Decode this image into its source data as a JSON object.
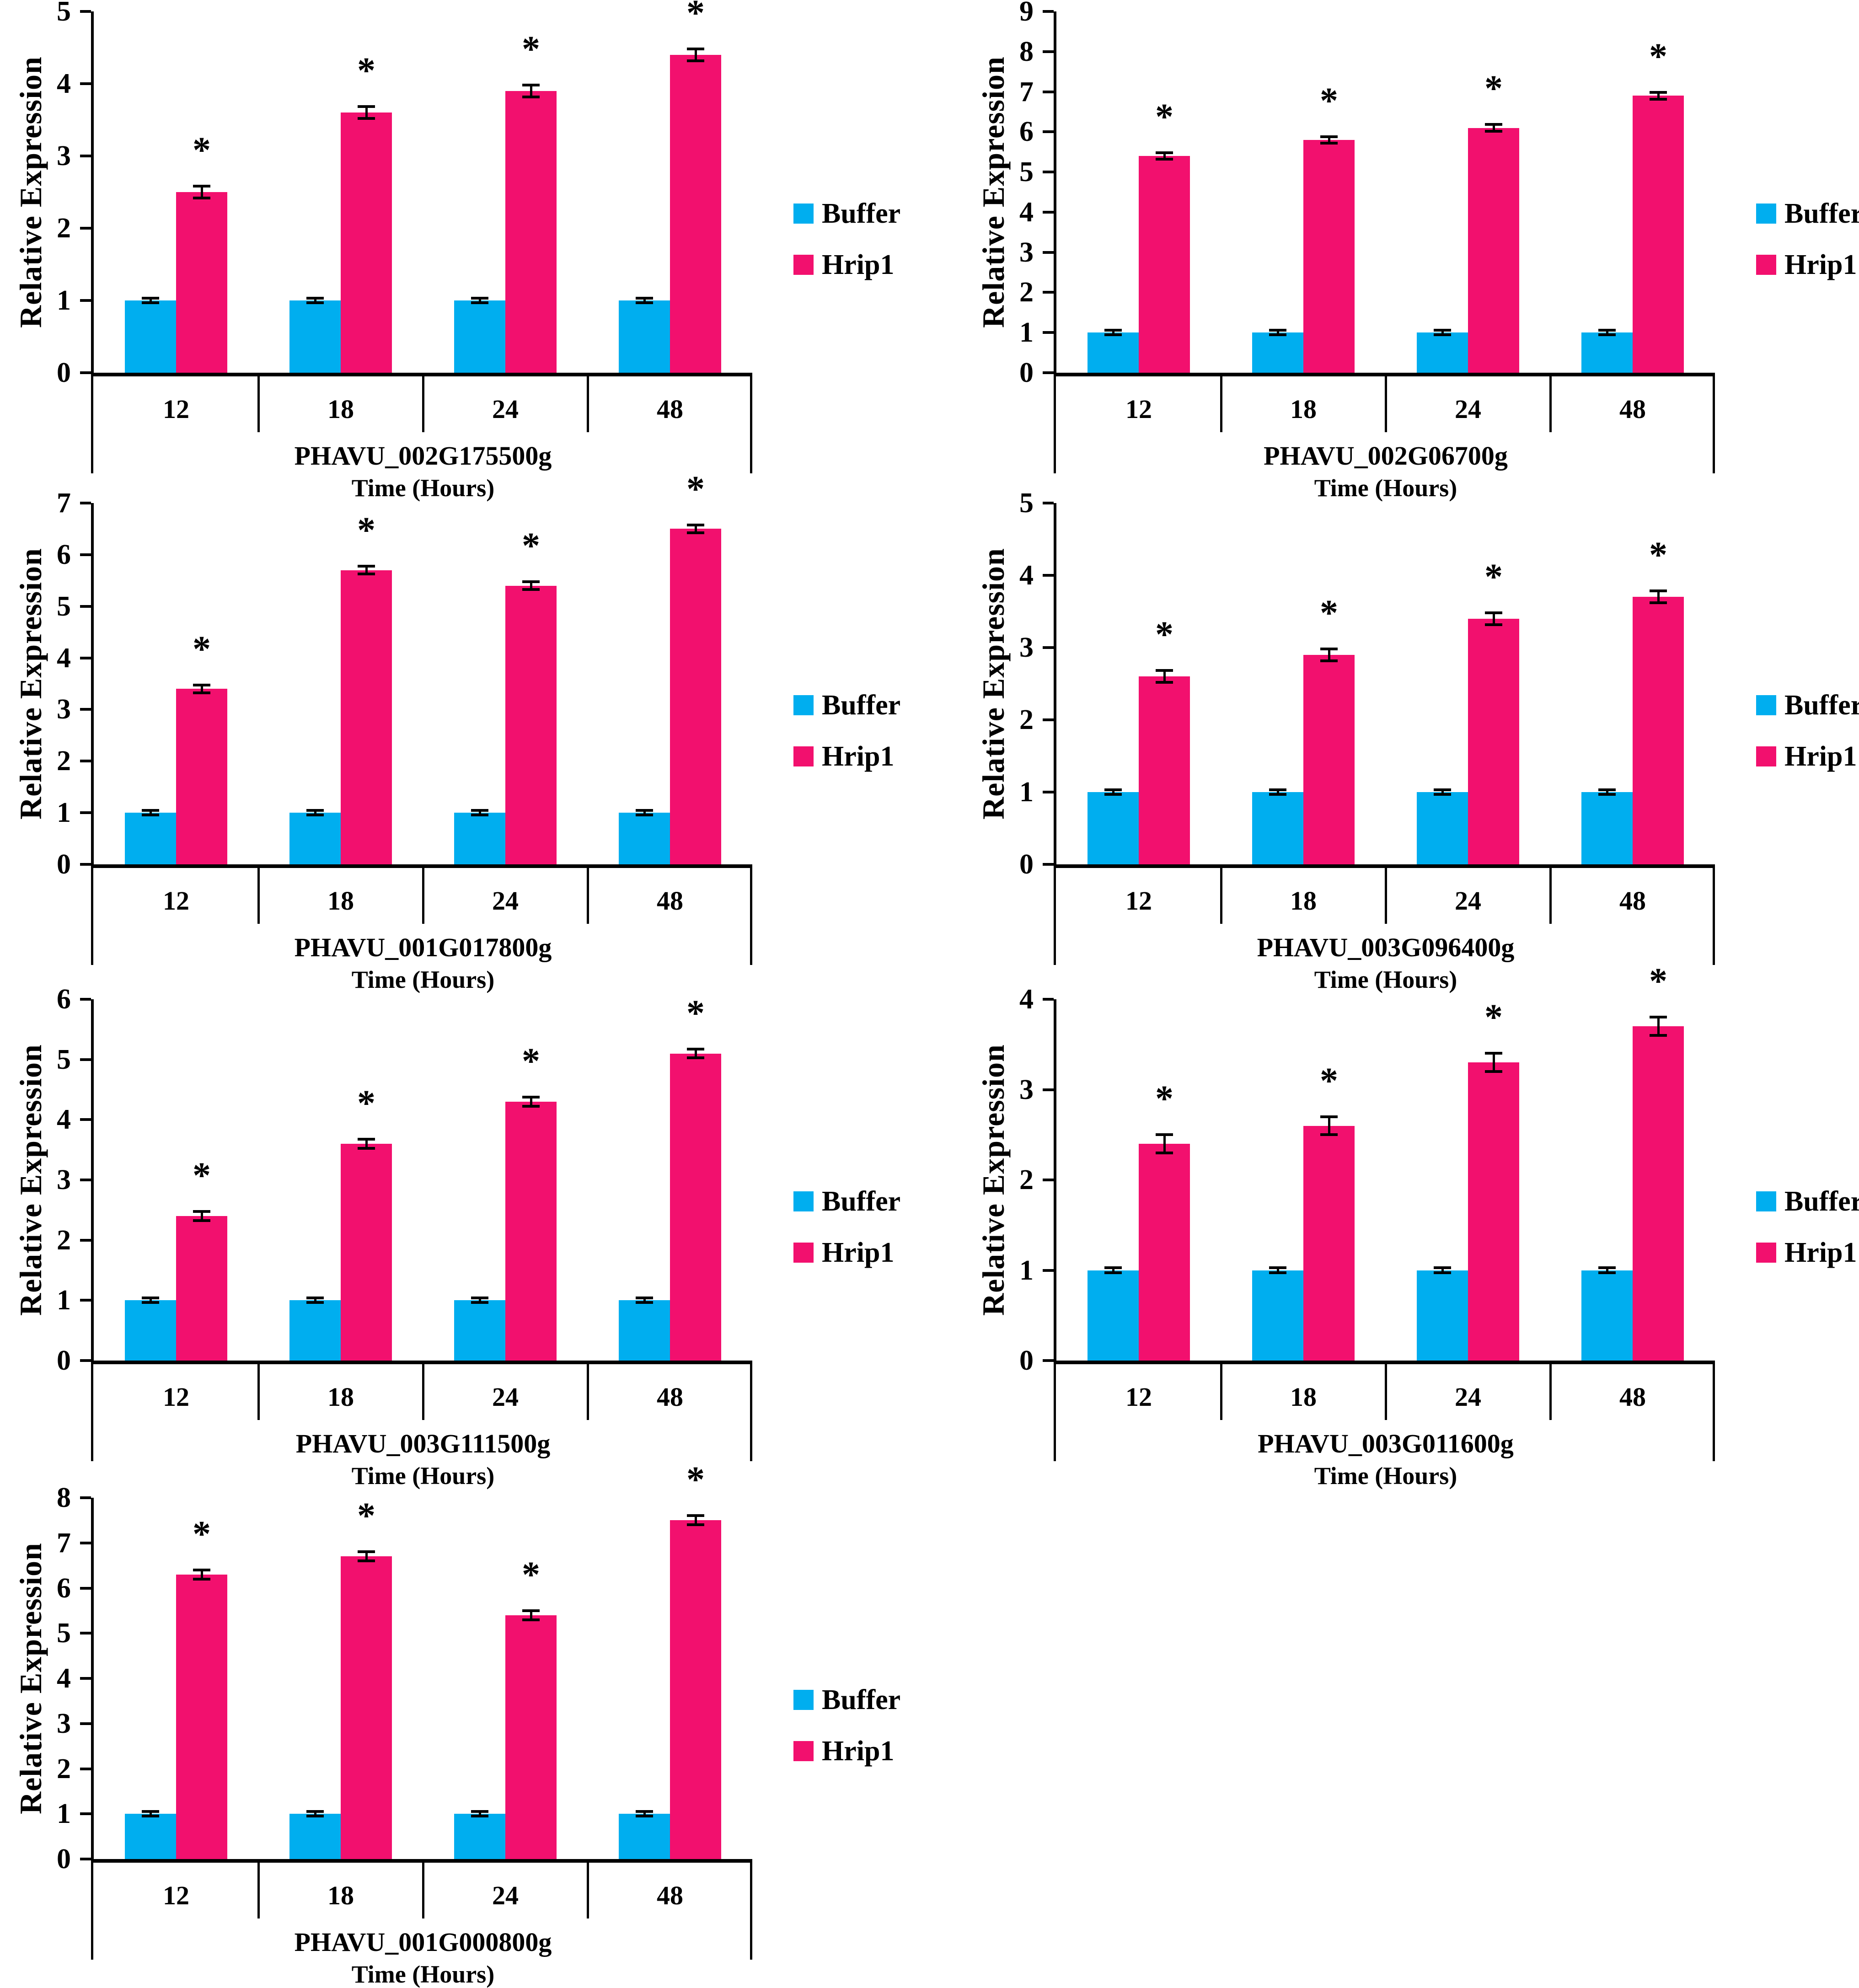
{
  "figure": {
    "background": "#FFFFFF",
    "significance_marker": "*",
    "legend": [
      {
        "label": "Buffer",
        "color": "#00AEEF"
      },
      {
        "label": "Hrip1",
        "color": "#F2106E"
      }
    ]
  },
  "chart_data": [
    {
      "type": "bar",
      "gene": "PHAVU_002G175500g",
      "title": "PHAVU_002G175500g",
      "xlabel": "Time (Hours)",
      "ylabel": "Relative Expression",
      "categories": [
        "12",
        "18",
        "24",
        "48"
      ],
      "yticks": [
        "0",
        "1",
        "2",
        "3",
        "4",
        "5"
      ],
      "ylim": [
        0,
        5
      ],
      "grid": false,
      "legend_position": "right",
      "series": [
        {
          "name": "Buffer",
          "color": "#00AEEF",
          "values": [
            1,
            1,
            1,
            1
          ],
          "error": 0.02,
          "significance": false
        },
        {
          "name": "Hrip1",
          "color": "#F2106E",
          "values": [
            2.5,
            3.6,
            3.9,
            4.4
          ],
          "error": 0.07,
          "significance": true
        }
      ]
    },
    {
      "type": "bar",
      "gene": "PHAVU_002G06700g",
      "title": "PHAVU_002G06700g",
      "xlabel": "Time (Hours)",
      "ylabel": "Relative Expression",
      "categories": [
        "12",
        "18",
        "24",
        "48"
      ],
      "yticks": [
        "0",
        "1",
        "2",
        "3",
        "4",
        "5",
        "6",
        "7",
        "8",
        "9"
      ],
      "ylim": [
        0,
        9
      ],
      "grid": false,
      "legend_position": "right",
      "series": [
        {
          "name": "Buffer",
          "color": "#00AEEF",
          "values": [
            1,
            1,
            1,
            1
          ],
          "error": 0.02,
          "significance": false
        },
        {
          "name": "Hrip1",
          "color": "#F2106E",
          "values": [
            5.4,
            5.8,
            6.1,
            6.9
          ],
          "error": 0.06,
          "significance": true
        }
      ]
    },
    {
      "type": "bar",
      "gene": "PHAVU_001G017800g",
      "title": "PHAVU_001G017800g",
      "xlabel": "Time (Hours)",
      "ylabel": "Relative Expression",
      "categories": [
        "12",
        "18",
        "24",
        "48"
      ],
      "yticks": [
        "0",
        "1",
        "2",
        "3",
        "4",
        "5",
        "6",
        "7"
      ],
      "ylim": [
        0,
        7
      ],
      "grid": false,
      "legend_position": "right",
      "series": [
        {
          "name": "Buffer",
          "color": "#00AEEF",
          "values": [
            1,
            1,
            1,
            1
          ],
          "error": 0.02,
          "significance": false
        },
        {
          "name": "Hrip1",
          "color": "#F2106E",
          "values": [
            3.4,
            5.7,
            5.4,
            6.5
          ],
          "error": 0.06,
          "significance": true
        }
      ]
    },
    {
      "type": "bar",
      "gene": "PHAVU_003G096400g",
      "title": "PHAVU_003G096400g",
      "xlabel": "Time (Hours)",
      "ylabel": "Relative Expression",
      "categories": [
        "12",
        "18",
        "24",
        "48"
      ],
      "yticks": [
        "0",
        "1",
        "2",
        "3",
        "4",
        "5"
      ],
      "ylim": [
        0,
        5
      ],
      "grid": false,
      "legend_position": "right",
      "series": [
        {
          "name": "Buffer",
          "color": "#00AEEF",
          "values": [
            1,
            1,
            1,
            1
          ],
          "error": 0.02,
          "significance": false
        },
        {
          "name": "Hrip1",
          "color": "#F2106E",
          "values": [
            2.6,
            2.9,
            3.4,
            3.7
          ],
          "error": 0.07,
          "significance": true
        }
      ]
    },
    {
      "type": "bar",
      "gene": "PHAVU_003G111500g",
      "title": "PHAVU_003G111500g",
      "xlabel": "Time (Hours)",
      "ylabel": "Relative Expression",
      "categories": [
        "12",
        "18",
        "24",
        "48"
      ],
      "yticks": [
        "0",
        "1",
        "2",
        "3",
        "4",
        "5",
        "6"
      ],
      "ylim": [
        0,
        6
      ],
      "grid": false,
      "legend_position": "right",
      "series": [
        {
          "name": "Buffer",
          "color": "#00AEEF",
          "values": [
            1,
            1,
            1,
            1
          ],
          "error": 0.02,
          "significance": false
        },
        {
          "name": "Hrip1",
          "color": "#F2106E",
          "values": [
            2.4,
            3.6,
            4.3,
            5.1
          ],
          "error": 0.06,
          "significance": true
        }
      ]
    },
    {
      "type": "bar",
      "gene": "PHAVU_003G011600g",
      "title": "PHAVU_003G011600g",
      "xlabel": "Time (Hours)",
      "ylabel": "Relative Expression",
      "categories": [
        "12",
        "18",
        "24",
        "48"
      ],
      "yticks": [
        "0",
        "1",
        "2",
        "3",
        "4"
      ],
      "ylim": [
        0,
        4
      ],
      "grid": false,
      "legend_position": "right",
      "series": [
        {
          "name": "Buffer",
          "color": "#00AEEF",
          "values": [
            1,
            1,
            1,
            1
          ],
          "error": 0.02,
          "significance": false
        },
        {
          "name": "Hrip1",
          "color": "#F2106E",
          "values": [
            2.4,
            2.6,
            3.3,
            3.7
          ],
          "error": 0.09,
          "significance": true
        }
      ]
    },
    {
      "type": "bar",
      "gene": "PHAVU_001G000800g",
      "title": "PHAVU_001G000800g",
      "xlabel": "Time (Hours)",
      "ylabel": "Relative Expression",
      "categories": [
        "12",
        "18",
        "24",
        "48"
      ],
      "yticks": [
        "0",
        "1",
        "2",
        "3",
        "4",
        "5",
        "6",
        "7",
        "8"
      ],
      "ylim": [
        0,
        8
      ],
      "grid": false,
      "legend_position": "right",
      "series": [
        {
          "name": "Buffer",
          "color": "#00AEEF",
          "values": [
            1,
            1,
            1,
            1
          ],
          "error": 0.02,
          "significance": false
        },
        {
          "name": "Hrip1",
          "color": "#F2106E",
          "values": [
            6.3,
            6.7,
            5.4,
            7.5
          ],
          "error": 0.08,
          "significance": true
        }
      ]
    }
  ]
}
